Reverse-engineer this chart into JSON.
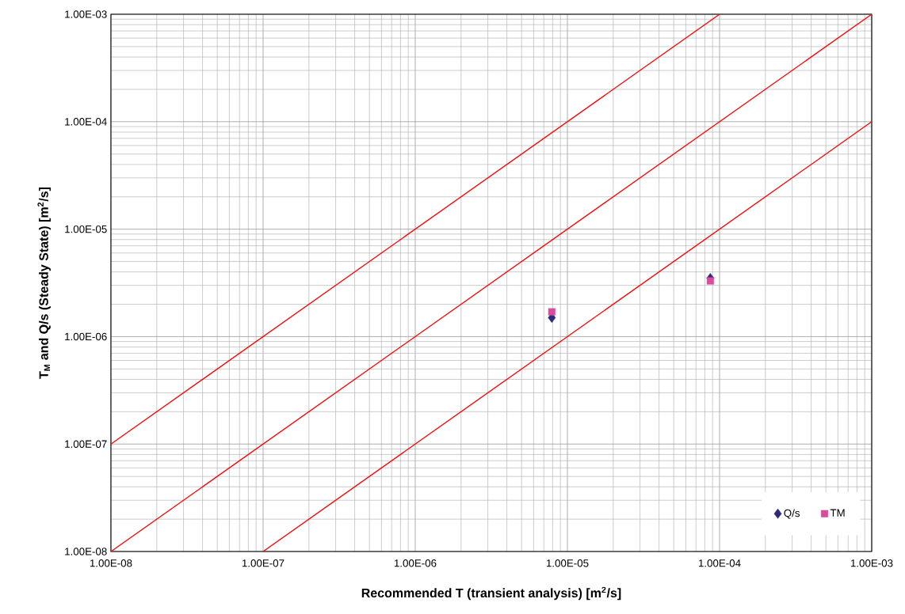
{
  "chart_data": {
    "type": "scatter",
    "xlabel": "Recommended T (transient analysis) [m$^{2}$/s]",
    "ylabel": "T$_{M}$ and Q/s (Steady State) [m$^{2}$/s]",
    "log": "xy",
    "grid": true,
    "legend": "bottom right",
    "xlim": [
      1e-08,
      0.001
    ],
    "ylim": [
      1e-08,
      0.001
    ],
    "xticks": [
      {
        "value": 1e-08,
        "label": "1.00E-08"
      },
      {
        "value": 1e-07,
        "label": "1.00E-07"
      },
      {
        "value": 1e-06,
        "label": "1.00E-06"
      },
      {
        "value": 1e-05,
        "label": "1.00E-05"
      },
      {
        "value": 0.0001,
        "label": "1.00E-04"
      },
      {
        "value": 0.001,
        "label": "1.00E-03"
      }
    ],
    "yticks": [
      {
        "value": 1e-08,
        "label": "1.00E-08"
      },
      {
        "value": 1e-07,
        "label": "1.00E-07"
      },
      {
        "value": 1e-06,
        "label": "1.00E-06"
      },
      {
        "value": 1e-05,
        "label": "1.00E-05"
      },
      {
        "value": 0.0001,
        "label": "1.00E-04"
      },
      {
        "value": 0.001,
        "label": "1.00E-03"
      }
    ],
    "series": [
      {
        "type": "line",
        "color": "#ff0000",
        "marker": "none",
        "x": [
          1e-08,
          0.0001
        ],
        "values": [
          1e-07,
          0.001
        ]
      },
      {
        "type": "line",
        "color": "#ff0000",
        "marker": "none",
        "x": [
          1e-08,
          0.001
        ],
        "values": [
          1e-08,
          0.001
        ]
      },
      {
        "type": "line",
        "color": "#ff0000",
        "marker": "none",
        "x": [
          1e-07,
          0.001
        ],
        "values": [
          1e-08,
          0.0001
        ]
      },
      {
        "name": "Q/s",
        "color": "#2e2a7a",
        "marker": "diamond",
        "x": [
          7.9e-06,
          8.7e-05
        ],
        "values": [
          1.5e-06,
          3.5e-06
        ]
      },
      {
        "name": "TM",
        "color": "#d64d9b",
        "marker": "square",
        "x": [
          7.9e-06,
          8.7e-05
        ],
        "values": [
          1.7e-06,
          3.3e-06
        ]
      }
    ]
  }
}
